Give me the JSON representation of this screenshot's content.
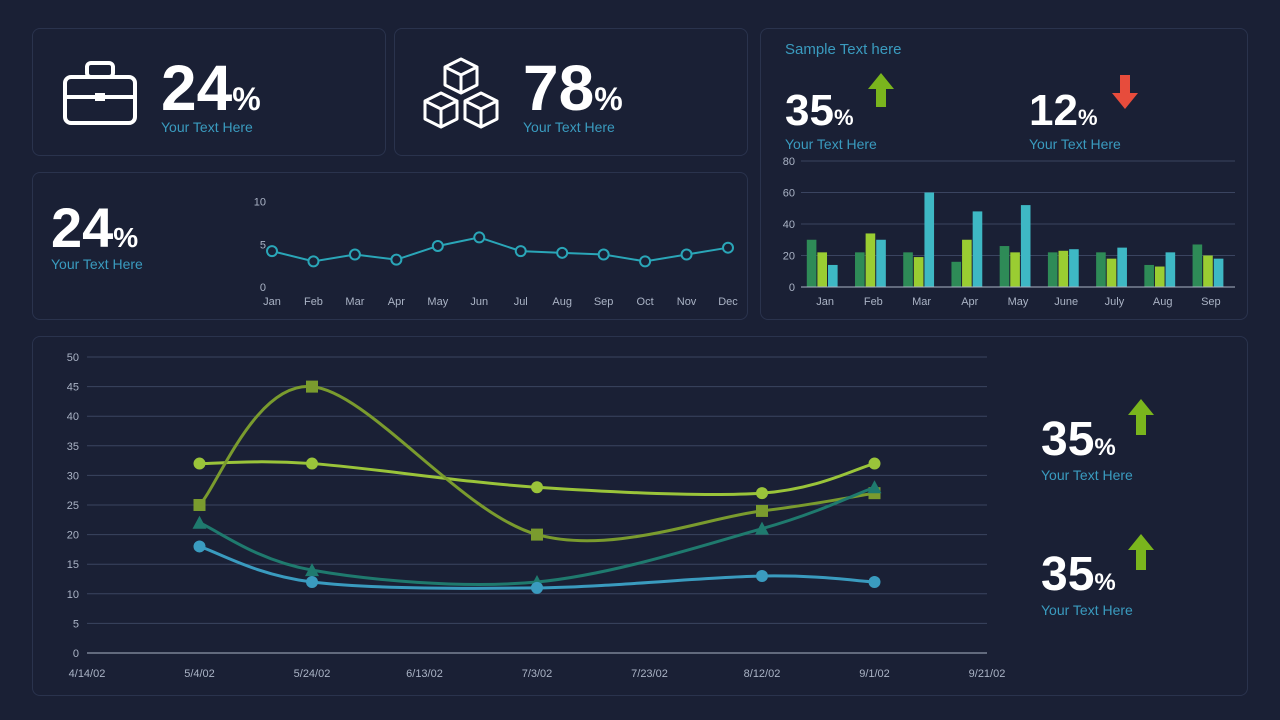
{
  "colors": {
    "bg": "#1a2035",
    "card_border": "#2a334d",
    "text_white": "#ffffff",
    "text_cyan": "#3a9bbf",
    "axis": "#aab3c5",
    "grid": "#3a4460",
    "green": "#7ab51d",
    "red": "#e74c3c",
    "line_teal": "#2aa6b8",
    "bar_green_dark": "#2e8b57",
    "bar_green_light": "#9acd32",
    "bar_teal": "#3eb8c4",
    "multi_green": "#9ac43a",
    "multi_olive": "#7a9b2e",
    "multi_teal_dark": "#1f7a6e",
    "multi_cyan": "#3a9bbf"
  },
  "card1": {
    "value": "24",
    "unit": "%",
    "sub": "Your Text Here"
  },
  "card2": {
    "value": "78",
    "unit": "%",
    "sub": "Your Text Here"
  },
  "card3": {
    "value": "24",
    "unit": "%",
    "sub": "Your Text Here",
    "mini_line": {
      "ylabels": [
        "10",
        "5",
        "0"
      ],
      "yticks": [
        10,
        5,
        0
      ],
      "ylim": [
        0,
        11
      ],
      "labels": [
        "Jan",
        "Feb",
        "Mar",
        "Apr",
        "May",
        "Jun",
        "Jul",
        "Aug",
        "Sep",
        "Oct",
        "Nov",
        "Dec"
      ],
      "values": [
        4.2,
        3.0,
        3.8,
        3.2,
        4.8,
        5.8,
        4.2,
        4.0,
        3.8,
        3.0,
        3.8,
        4.6
      ],
      "marker_r": 5,
      "line_w": 2
    }
  },
  "card4": {
    "title": "Sample Text here",
    "stat1": {
      "value": "35",
      "unit": "%",
      "dir": "up",
      "color": "#7ab51d",
      "sub": "Your Text Here"
    },
    "stat2": {
      "value": "12",
      "unit": "%",
      "dir": "down",
      "color": "#e74c3c",
      "sub": "Your Text Here"
    },
    "bar_chart": {
      "ylim": [
        0,
        80
      ],
      "ytick_step": 20,
      "yticks": [
        0,
        20,
        40,
        60,
        80
      ],
      "labels": [
        "Jan",
        "Feb",
        "Mar",
        "Apr",
        "May",
        "June",
        "July",
        "Aug",
        "Sep"
      ],
      "series_colors": [
        "#2e8b57",
        "#9acd32",
        "#3eb8c4"
      ],
      "data": [
        [
          30,
          22,
          14
        ],
        [
          22,
          34,
          30
        ],
        [
          22,
          19,
          60
        ],
        [
          16,
          30,
          48
        ],
        [
          26,
          22,
          52
        ],
        [
          22,
          23,
          24
        ],
        [
          22,
          18,
          25
        ],
        [
          14,
          13,
          22
        ],
        [
          27,
          20,
          18
        ]
      ]
    }
  },
  "card5": {
    "chart": {
      "ylim": [
        0,
        50
      ],
      "ytick_step": 5,
      "yticks": [
        0,
        5,
        10,
        15,
        20,
        25,
        30,
        35,
        40,
        45,
        50
      ],
      "xlabels": [
        "4/14/02",
        "5/4/02",
        "5/24/02",
        "6/13/02",
        "7/3/02",
        "7/23/02",
        "8/12/02",
        "9/1/02",
        "9/21/02"
      ],
      "xindices": [
        1,
        2,
        4,
        6,
        7
      ],
      "series": [
        {
          "name": "s_green",
          "color": "#9ac43a",
          "marker": "circle",
          "width": 3,
          "pts": [
            [
              1,
              32
            ],
            [
              2,
              32
            ],
            [
              4,
              28
            ],
            [
              6,
              27
            ],
            [
              7,
              32
            ]
          ]
        },
        {
          "name": "s_olive",
          "color": "#7a9b2e",
          "marker": "square",
          "width": 3,
          "pts": [
            [
              1,
              25
            ],
            [
              2,
              45
            ],
            [
              4,
              20
            ],
            [
              6,
              24
            ],
            [
              7,
              27
            ]
          ]
        },
        {
          "name": "s_tealdark",
          "color": "#1f7a6e",
          "marker": "triangle",
          "width": 3,
          "pts": [
            [
              1,
              22
            ],
            [
              2,
              14
            ],
            [
              4,
              12
            ],
            [
              6,
              21
            ],
            [
              7,
              28
            ]
          ]
        },
        {
          "name": "s_cyan",
          "color": "#3a9bbf",
          "marker": "circle",
          "width": 3,
          "pts": [
            [
              1,
              18
            ],
            [
              2,
              12
            ],
            [
              4,
              11
            ],
            [
              6,
              13
            ],
            [
              7,
              12
            ]
          ]
        }
      ]
    },
    "stat1": {
      "value": "35",
      "unit": "%",
      "dir": "up",
      "color": "#7ab51d",
      "sub": "Your Text Here"
    },
    "stat2": {
      "value": "35",
      "unit": "%",
      "dir": "up",
      "color": "#7ab51d",
      "sub": "Your Text Here"
    }
  }
}
